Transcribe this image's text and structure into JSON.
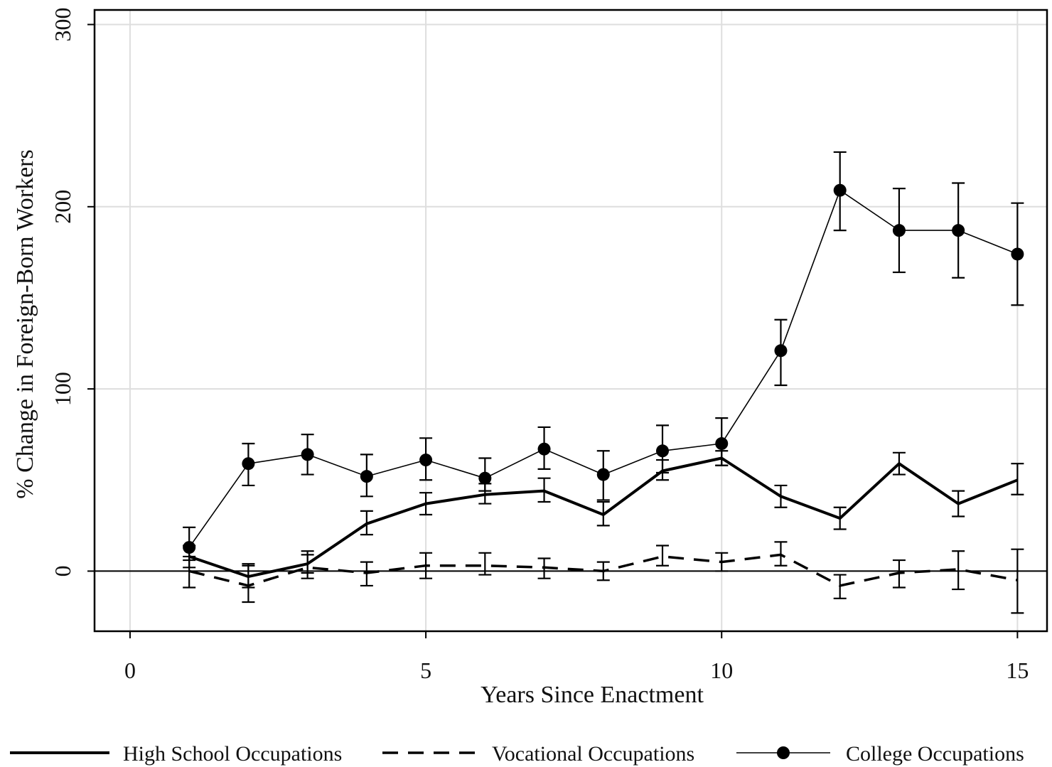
{
  "chart_data": {
    "type": "line",
    "xlabel": "Years Since Enactment",
    "ylabel": "% Change in Foreign-Born Workers",
    "xlim": [
      -0.6,
      15.5
    ],
    "ylim": [
      -33,
      308
    ],
    "xticks": [
      0,
      5,
      10,
      15
    ],
    "yticks": [
      0,
      100,
      200,
      300
    ],
    "x_tick_labels": [
      "0",
      "5",
      "10",
      "15"
    ],
    "y_tick_labels": [
      "0",
      "100",
      "200",
      "300"
    ],
    "grid": true,
    "reference_line_y": 0,
    "legend_position": "bottom",
    "x": [
      1,
      2,
      3,
      4,
      5,
      6,
      7,
      8,
      9,
      10,
      11,
      12,
      13,
      14,
      15
    ],
    "series": [
      {
        "name": "High School Occupations",
        "style": "solid-thick",
        "values": [
          8,
          -3,
          4,
          26,
          37,
          42,
          44,
          31,
          55,
          62,
          41,
          29,
          59,
          37,
          50
        ],
        "ci_low": [
          2,
          -9,
          -1,
          20,
          31,
          37,
          38,
          25,
          50,
          58,
          35,
          23,
          53,
          30,
          42
        ],
        "ci_high": [
          14,
          4,
          11,
          33,
          43,
          48,
          51,
          38,
          61,
          66,
          47,
          35,
          65,
          44,
          59
        ]
      },
      {
        "name": "Vocational Occupations",
        "style": "dashed",
        "values": [
          0,
          -8,
          2,
          -1,
          3,
          3,
          2,
          0,
          8,
          5,
          9,
          -8,
          -1,
          1,
          -5
        ],
        "ci_low": [
          -9,
          -17,
          -4,
          -8,
          -4,
          -2,
          -4,
          -5,
          3,
          0,
          3,
          -15,
          -9,
          -10,
          -23
        ],
        "ci_high": [
          8,
          3,
          9,
          5,
          10,
          10,
          7,
          5,
          14,
          10,
          16,
          -2,
          6,
          11,
          12
        ]
      },
      {
        "name": "College Occupations",
        "style": "thin-with-markers",
        "values": [
          13,
          59,
          64,
          52,
          61,
          51,
          67,
          53,
          66,
          70,
          121,
          209,
          187,
          187,
          174
        ],
        "ci_low": [
          6,
          47,
          53,
          41,
          50,
          44,
          56,
          39,
          54,
          58,
          102,
          187,
          164,
          161,
          146
        ],
        "ci_high": [
          24,
          70,
          75,
          64,
          73,
          62,
          79,
          66,
          80,
          84,
          138,
          230,
          210,
          213,
          202
        ]
      }
    ],
    "colors": {
      "line": "#000000",
      "grid": "#dedede",
      "axis": "#000000"
    }
  }
}
